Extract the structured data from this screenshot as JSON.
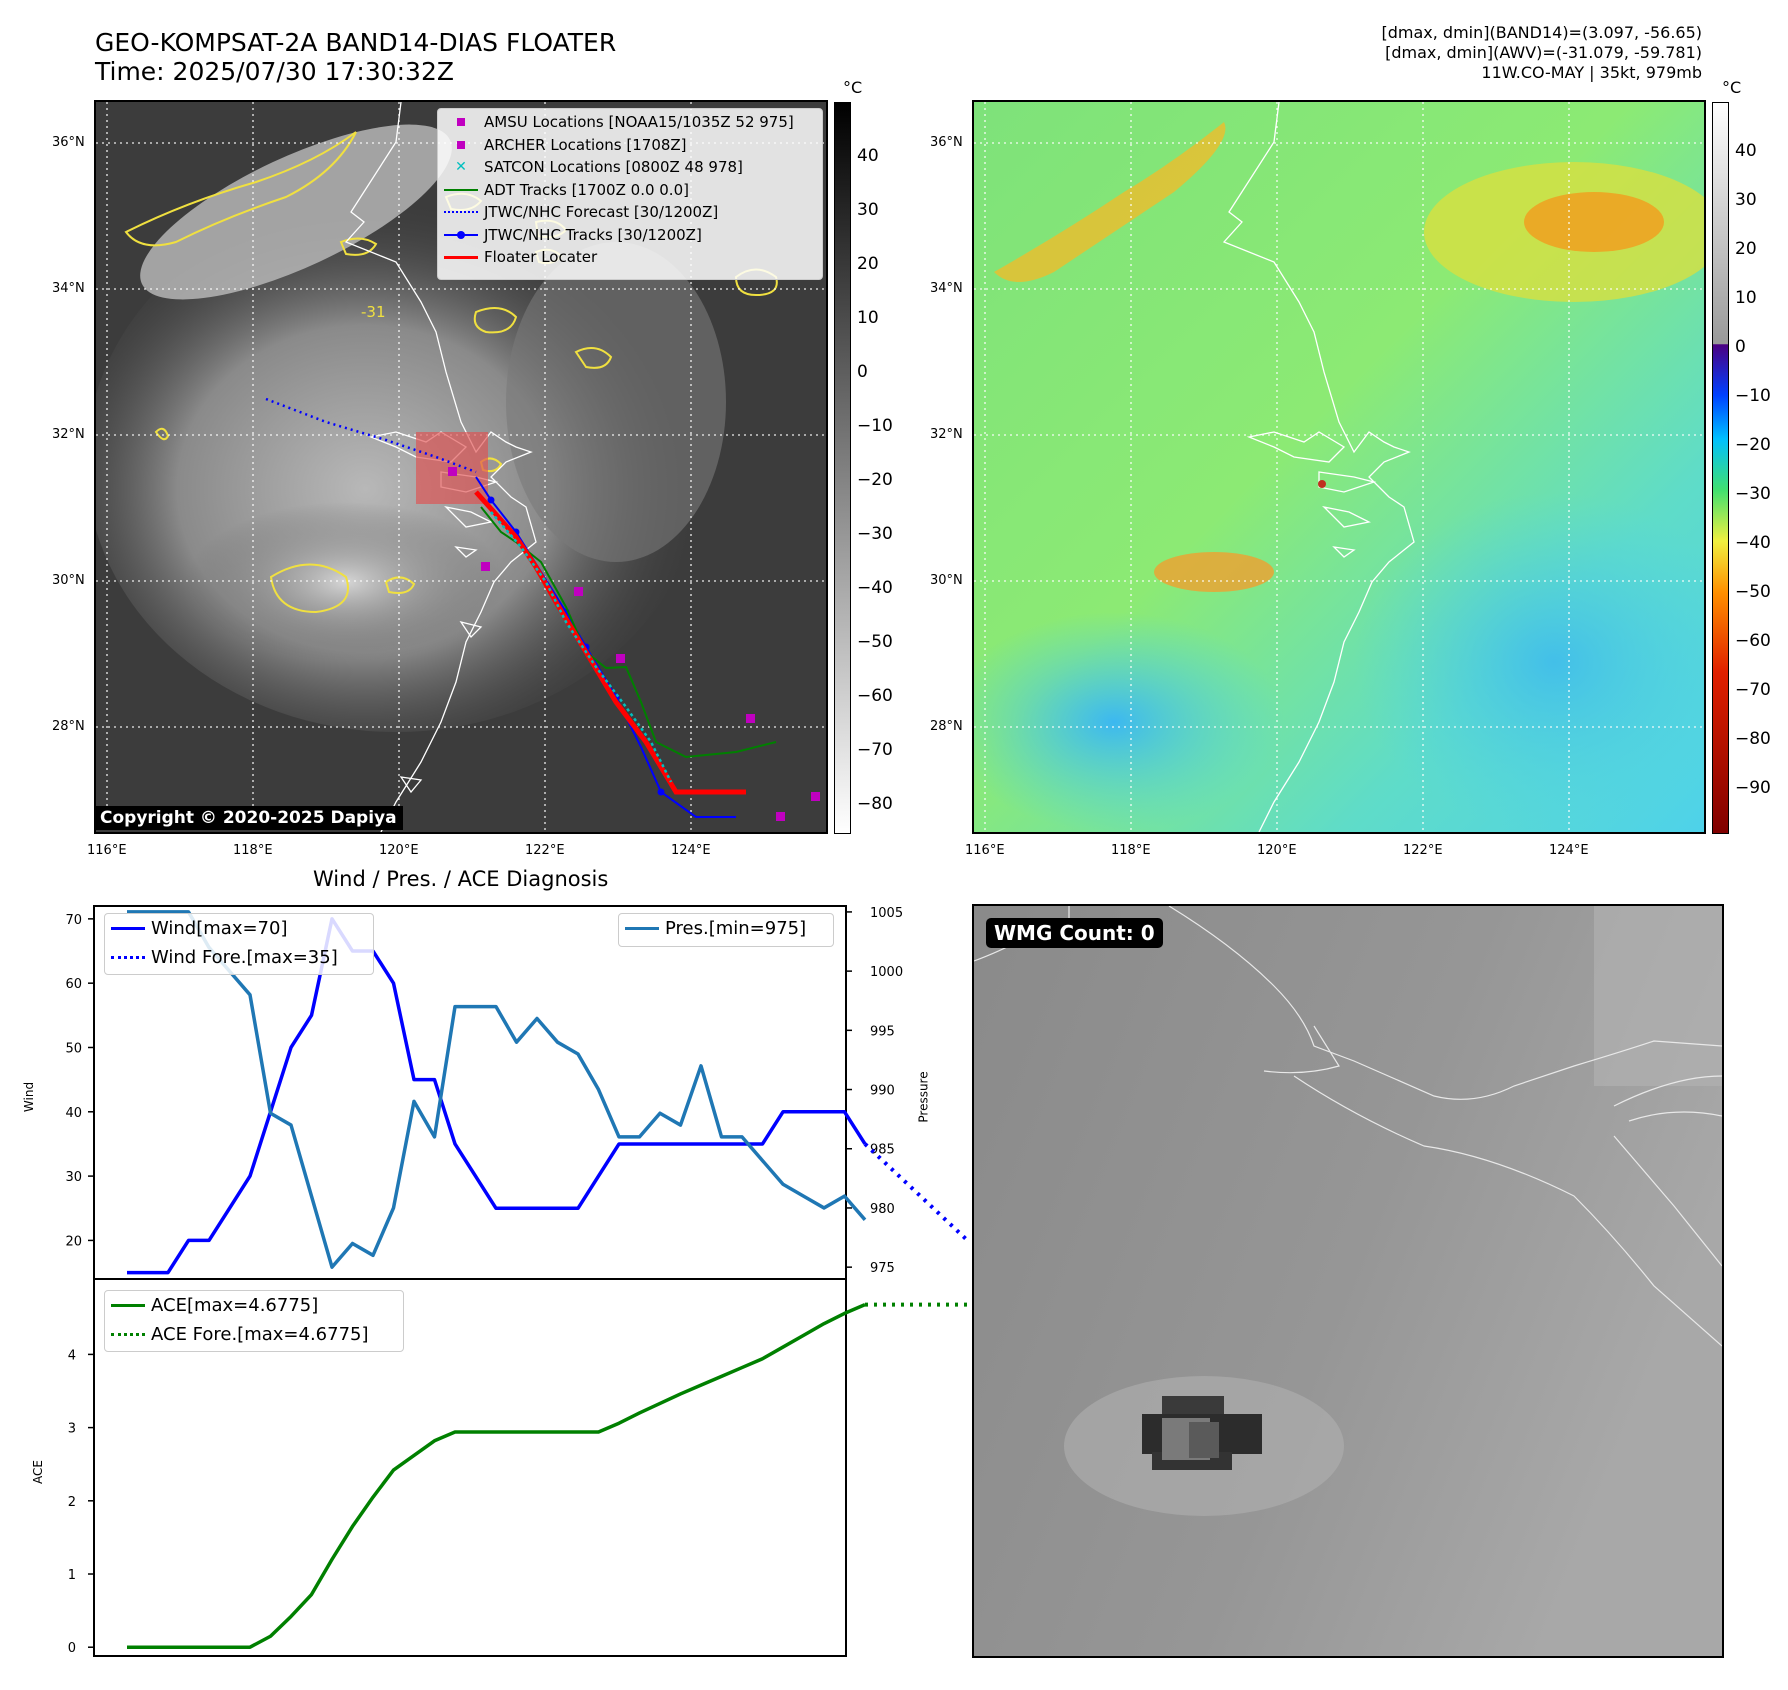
{
  "header": {
    "title_line1": "GEO-KOMPSAT-2A BAND14-DIAS FLOATER",
    "title_line2": "Time: 2025/07/30 17:30:32Z",
    "stats_line1": "[dmax, dmin](BAND14)=(3.097, -56.65)",
    "stats_line2": "[dmax, dmin](AWV)=(-31.079, -59.781)",
    "stats_line3": "11W.CO-MAY | 35kt, 979mb"
  },
  "map_ir": {
    "lon_labels": [
      "116°E",
      "118°E",
      "120°E",
      "122°E",
      "124°E"
    ],
    "lat_labels": [
      "36°N",
      "34°N",
      "32°N",
      "30°N",
      "28°N"
    ],
    "contour_label": "-31",
    "copyright": "Copyright © 2020-2025 Dapiya",
    "colorbar_unit": "°C",
    "colorbar_ticks": [
      "40",
      "30",
      "20",
      "10",
      "0",
      "−10",
      "−20",
      "−30",
      "−40",
      "−50",
      "−60",
      "−70",
      "−80"
    ],
    "legend": [
      {
        "label": "AMSU Locations [NOAA15/1035Z 52 975]",
        "color": "#c000c0"
      },
      {
        "label": "ARCHER Locations [1708Z]",
        "color": "#c000c0"
      },
      {
        "label": "SATCON Locations [0800Z 48 978]",
        "color": "#00bfbf"
      },
      {
        "label": "ADT Tracks [1700Z 0.0 0.0]",
        "color": "#008000"
      },
      {
        "label": "JTWC/NHC Forecast [30/1200Z]",
        "color": "#0000ff"
      },
      {
        "label": "JTWC/NHC Tracks [30/1200Z]",
        "color": "#0000ff"
      },
      {
        "label": "Floater Locater",
        "color": "#ff0000"
      }
    ]
  },
  "map_wv": {
    "lon_labels": [
      "116°E",
      "118°E",
      "120°E",
      "122°E",
      "124°E"
    ],
    "lat_labels": [
      "36°N",
      "34°N",
      "32°N",
      "30°N",
      "28°N"
    ],
    "colorbar_unit": "°C",
    "colorbar_ticks": [
      "40",
      "30",
      "20",
      "10",
      "0",
      "−10",
      "−20",
      "−30",
      "−40",
      "−50",
      "−60",
      "−70",
      "−80",
      "−90"
    ]
  },
  "wmg": {
    "label": "WMG Count: 0"
  },
  "chart_data": [
    {
      "type": "line",
      "title": "Wind / Pres. / ACE Diagnosis",
      "ylabel": "Wind",
      "ylabel_right": "Pressure",
      "ylim": [
        14,
        72
      ],
      "ylim_right": [
        974,
        1005.5
      ],
      "yticks": [
        20,
        30,
        40,
        50,
        60,
        70
      ],
      "yticks_right": [
        975,
        980,
        985,
        990,
        995,
        1000,
        1005
      ],
      "series": [
        {
          "name": "Wind[max=70]",
          "axis": "left",
          "style": "solid",
          "color": "#0000ff",
          "values": [
            15,
            15,
            15,
            20,
            20,
            25,
            30,
            40,
            50,
            55,
            70,
            65,
            65,
            60,
            45,
            45,
            35,
            30,
            25,
            25,
            25,
            25,
            25,
            30,
            35,
            35,
            35,
            35,
            35,
            35,
            35,
            35,
            40,
            40,
            40,
            40,
            35
          ]
        },
        {
          "name": "Wind Fore.[max=35]",
          "axis": "left",
          "style": "dotted",
          "color": "#0000ff",
          "x": [
            36,
            41
          ],
          "values": [
            35,
            20
          ]
        },
        {
          "name": "Pres.[min=975]",
          "axis": "right",
          "style": "solid",
          "color": "#1f77b4",
          "values": [
            1005,
            1005,
            1005,
            1005,
            1002,
            1000,
            998,
            988,
            987,
            981,
            975,
            977,
            976,
            980,
            989,
            986,
            997,
            997,
            997,
            994,
            996,
            994,
            993,
            990,
            986,
            986,
            988,
            987,
            992,
            986,
            986,
            984,
            982,
            981,
            980,
            981,
            979
          ]
        }
      ]
    },
    {
      "type": "line",
      "ylabel": "ACE",
      "ylim": [
        -0.12,
        5.03
      ],
      "yticks": [
        0,
        1,
        2,
        3,
        4
      ],
      "series": [
        {
          "name": "ACE[max=4.6775]",
          "style": "solid",
          "color": "#008000",
          "values": [
            0,
            0,
            0,
            0,
            0,
            0,
            0,
            0.15,
            0.42,
            0.72,
            1.2,
            1.65,
            2.05,
            2.42,
            2.62,
            2.82,
            2.94,
            2.94,
            2.94,
            2.94,
            2.94,
            2.94,
            2.94,
            2.94,
            3.06,
            3.2,
            3.33,
            3.46,
            3.58,
            3.7,
            3.82,
            3.94,
            4.1,
            4.26,
            4.42,
            4.56,
            4.68
          ]
        },
        {
          "name": "ACE Fore.[max=4.6775]",
          "style": "dotted",
          "color": "#008000",
          "x": [
            36,
            41
          ],
          "values": [
            4.68,
            4.68
          ]
        }
      ]
    }
  ]
}
